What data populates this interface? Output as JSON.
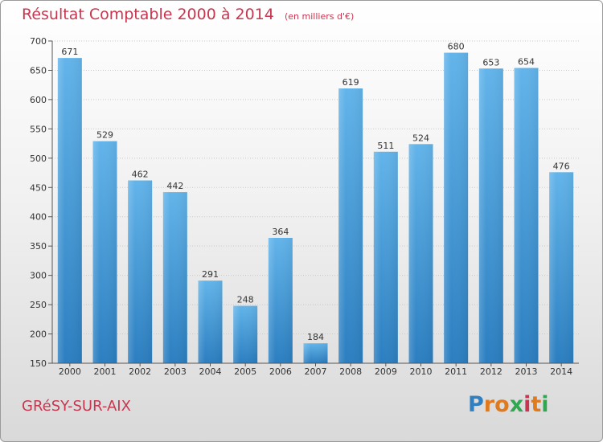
{
  "chart_data": {
    "type": "bar",
    "title": "Résultat Comptable 2000 à 2014",
    "subtitle": "(en milliers d'€)",
    "categories": [
      "2000",
      "2001",
      "2002",
      "2003",
      "2004",
      "2005",
      "2006",
      "2007",
      "2008",
      "2009",
      "2010",
      "2011",
      "2012",
      "2013",
      "2014"
    ],
    "values": [
      671,
      529,
      462,
      442,
      291,
      248,
      364,
      184,
      619,
      511,
      524,
      680,
      653,
      654,
      476
    ],
    "ylim": [
      150,
      700
    ],
    "yticks": [
      150,
      200,
      250,
      300,
      350,
      400,
      450,
      500,
      550,
      600,
      650,
      700
    ],
    "grid": true,
    "bar_color": "#3f95d3",
    "title_color": "#c8364f"
  },
  "footer": {
    "place": "GRéSY-SUR-AIX",
    "logo_letters": [
      "P",
      "r",
      "o",
      "x",
      "i",
      "t",
      "i"
    ],
    "logo_colors": [
      "#2f7fc1",
      "#e07a1f",
      "#e07a1f",
      "#2fa84f",
      "#c8364f",
      "#e07a1f",
      "#2fa84f"
    ]
  }
}
